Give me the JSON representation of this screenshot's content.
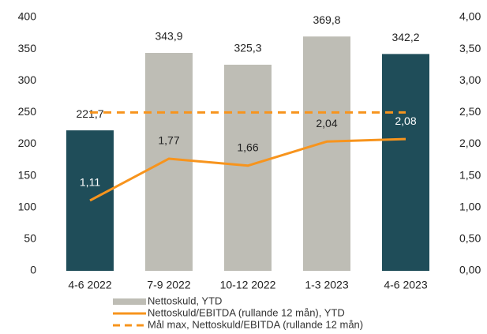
{
  "chart_data": {
    "type": "combo",
    "categories": [
      "4-6 2022",
      "7-9 2022",
      "10-12 2022",
      "1-3 2023",
      "4-6 2023"
    ],
    "series": [
      {
        "name": "Nettoskuld, YTD",
        "type": "bar",
        "color": "#bebdb5",
        "colors": [
          "#1f4d59",
          "#bebdb5",
          "#bebdb5",
          "#bebdb5",
          "#1f4d59"
        ],
        "values": [
          221.7,
          343.9,
          325.3,
          369.8,
          342.2
        ],
        "value_labels": [
          "221,7",
          "343,9",
          "325,3",
          "369,8",
          "342,2"
        ]
      },
      {
        "name": "Nettoskuld/EBITDA (rullande 12 mån), YTD",
        "type": "line",
        "color": "#f7941d",
        "axis": "y2",
        "values": [
          1.11,
          1.77,
          1.66,
          2.04,
          2.08
        ],
        "value_labels": [
          "1,11",
          "1,77",
          "1,66",
          "2,04",
          "2,08"
        ]
      },
      {
        "name": "Mål max, Nettoskuld/EBITDA (rullande 12 mån)",
        "type": "line",
        "dashed": true,
        "color": "#f7941d",
        "axis": "y2",
        "values": [
          2.5,
          2.5,
          2.5,
          2.5,
          2.5
        ]
      }
    ],
    "ylim": [
      0,
      400
    ],
    "yticks": [
      0,
      50,
      100,
      150,
      200,
      250,
      300,
      350,
      400
    ],
    "y2lim": [
      0,
      4
    ],
    "y2ticks": [
      {
        "value": 0,
        "label": "0,00"
      },
      {
        "value": 0.5,
        "label": "0,50"
      },
      {
        "value": 1,
        "label": "1,00"
      },
      {
        "value": 1.5,
        "label": "1,50"
      },
      {
        "value": 2,
        "label": "2,00"
      },
      {
        "value": 2.5,
        "label": "2,50"
      },
      {
        "value": 3,
        "label": "3,00"
      },
      {
        "value": 3.5,
        "label": "3,50"
      },
      {
        "value": 4,
        "label": "4,00"
      }
    ],
    "grid": false,
    "legend": "bottom"
  }
}
